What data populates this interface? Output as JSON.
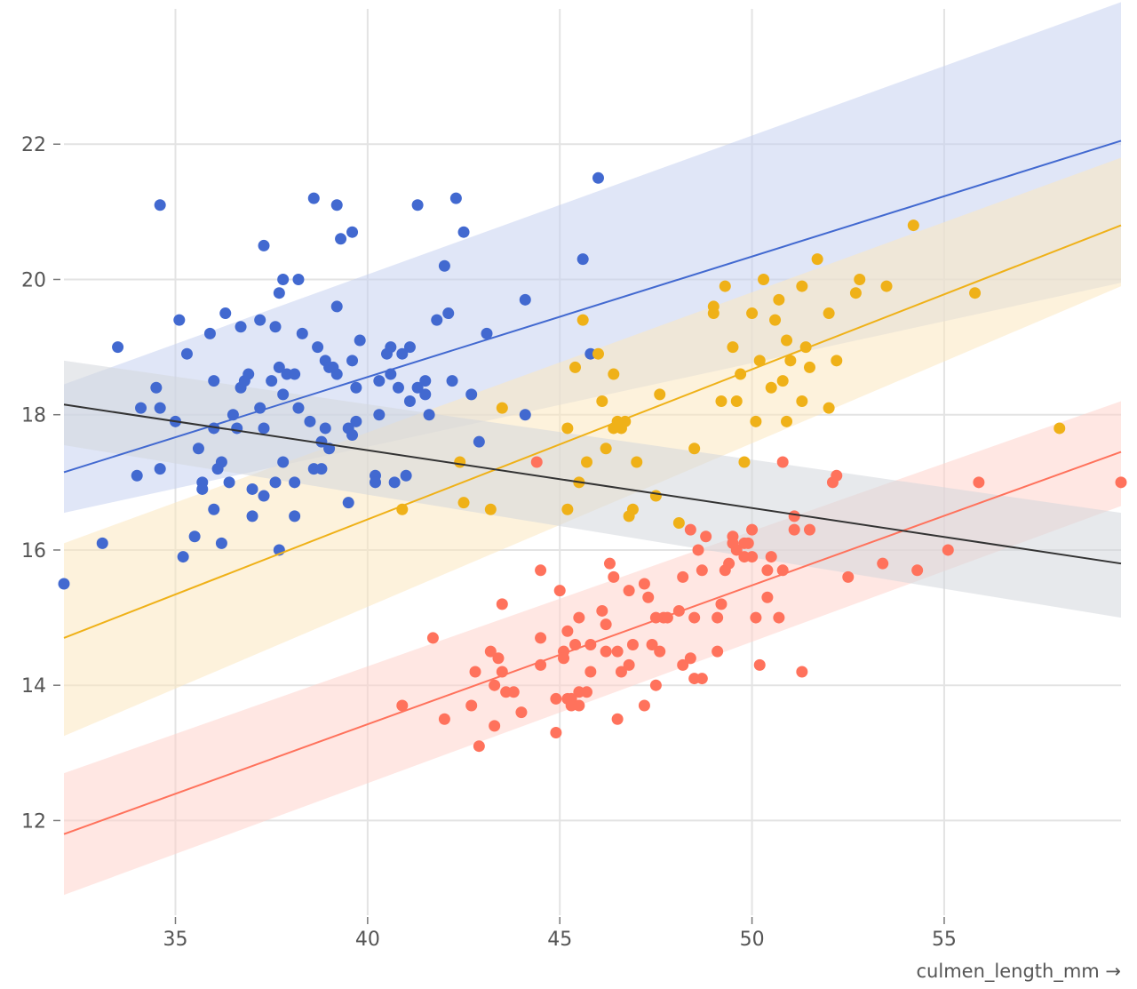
{
  "chart_data": {
    "type": "scatter",
    "title": "",
    "xlabel": "culmen_length_mm →",
    "ylabel": "",
    "xlim": [
      32.1,
      59.6
    ],
    "ylim": [
      10.6,
      24.0
    ],
    "x_ticks": [
      35,
      40,
      45,
      50,
      55
    ],
    "y_ticks": [
      12,
      14,
      16,
      18,
      20,
      22
    ],
    "grid": true,
    "legend": "none",
    "series": [
      {
        "color": "#4269d0",
        "band_color": "#c6d1f0",
        "regression": {
          "x": [
            32.1,
            59.6
          ],
          "y": [
            17.15,
            22.05
          ],
          "band_upper": [
            18.45,
            24.1
          ],
          "band_lower": [
            16.55,
            19.95
          ]
        },
        "points": [
          [
            32.1,
            15.5
          ],
          [
            33.1,
            16.1
          ],
          [
            33.5,
            19.0
          ],
          [
            34.0,
            17.1
          ],
          [
            34.1,
            18.1
          ],
          [
            34.5,
            18.4
          ],
          [
            34.6,
            18.1
          ],
          [
            34.6,
            21.1
          ],
          [
            34.6,
            17.2
          ],
          [
            35.0,
            17.9
          ],
          [
            35.1,
            19.4
          ],
          [
            35.2,
            15.9
          ],
          [
            35.3,
            18.9
          ],
          [
            35.5,
            16.2
          ],
          [
            35.6,
            17.5
          ],
          [
            35.7,
            17.0
          ],
          [
            35.7,
            16.9
          ],
          [
            35.9,
            19.2
          ],
          [
            36.0,
            18.5
          ],
          [
            36.0,
            17.8
          ],
          [
            36.0,
            16.6
          ],
          [
            36.1,
            17.2
          ],
          [
            36.2,
            17.3
          ],
          [
            36.2,
            16.1
          ],
          [
            36.3,
            19.5
          ],
          [
            36.4,
            17.0
          ],
          [
            36.5,
            18.0
          ],
          [
            36.6,
            17.8
          ],
          [
            36.7,
            18.4
          ],
          [
            36.7,
            19.3
          ],
          [
            36.8,
            18.5
          ],
          [
            36.9,
            18.6
          ],
          [
            37.0,
            16.9
          ],
          [
            37.0,
            16.5
          ],
          [
            37.2,
            18.1
          ],
          [
            37.2,
            19.4
          ],
          [
            37.3,
            17.8
          ],
          [
            37.3,
            16.8
          ],
          [
            37.3,
            20.5
          ],
          [
            37.5,
            18.5
          ],
          [
            37.6,
            19.3
          ],
          [
            37.6,
            17.0
          ],
          [
            37.7,
            18.7
          ],
          [
            37.7,
            16.0
          ],
          [
            37.7,
            19.8
          ],
          [
            37.8,
            18.3
          ],
          [
            37.8,
            17.3
          ],
          [
            37.8,
            20.0
          ],
          [
            37.9,
            18.6
          ],
          [
            38.1,
            18.6
          ],
          [
            38.1,
            17.0
          ],
          [
            38.1,
            16.5
          ],
          [
            38.2,
            18.1
          ],
          [
            38.2,
            20.0
          ],
          [
            38.3,
            19.2
          ],
          [
            38.5,
            17.9
          ],
          [
            38.6,
            21.2
          ],
          [
            38.6,
            17.2
          ],
          [
            38.7,
            19.0
          ],
          [
            38.8,
            17.2
          ],
          [
            38.8,
            17.6
          ],
          [
            38.9,
            18.8
          ],
          [
            38.9,
            17.8
          ],
          [
            39.0,
            17.5
          ],
          [
            39.0,
            18.7
          ],
          [
            39.1,
            18.7
          ],
          [
            39.2,
            19.6
          ],
          [
            39.2,
            18.6
          ],
          [
            39.2,
            21.1
          ],
          [
            39.3,
            20.6
          ],
          [
            39.5,
            17.8
          ],
          [
            39.5,
            16.7
          ],
          [
            39.6,
            18.8
          ],
          [
            39.6,
            20.7
          ],
          [
            39.6,
            17.7
          ],
          [
            39.7,
            18.4
          ],
          [
            39.7,
            17.9
          ],
          [
            39.8,
            19.1
          ],
          [
            40.2,
            17.1
          ],
          [
            40.2,
            17.0
          ],
          [
            40.3,
            18.0
          ],
          [
            40.3,
            18.5
          ],
          [
            40.5,
            18.9
          ],
          [
            40.6,
            19.0
          ],
          [
            40.6,
            18.6
          ],
          [
            40.7,
            17.0
          ],
          [
            40.8,
            18.4
          ],
          [
            40.9,
            18.9
          ],
          [
            41.0,
            17.1
          ],
          [
            41.1,
            18.2
          ],
          [
            41.1,
            19.0
          ],
          [
            41.3,
            18.4
          ],
          [
            41.3,
            21.1
          ],
          [
            41.5,
            18.5
          ],
          [
            41.5,
            18.3
          ],
          [
            41.6,
            18.0
          ],
          [
            41.8,
            19.4
          ],
          [
            42.0,
            20.2
          ],
          [
            42.1,
            19.5
          ],
          [
            42.2,
            18.5
          ],
          [
            42.3,
            21.2
          ],
          [
            42.5,
            20.7
          ],
          [
            42.7,
            18.3
          ],
          [
            42.9,
            17.6
          ],
          [
            43.1,
            19.2
          ],
          [
            44.1,
            19.7
          ],
          [
            44.1,
            18.0
          ],
          [
            45.6,
            20.3
          ],
          [
            45.8,
            18.9
          ],
          [
            46.0,
            21.5
          ]
        ]
      },
      {
        "color": "#efb118",
        "band_color": "#fbe8bf",
        "regression": {
          "x": [
            32.1,
            59.6
          ],
          "y": [
            14.7,
            20.8
          ],
          "band_upper": [
            16.1,
            21.8
          ],
          "band_lower": [
            13.25,
            19.9
          ]
        },
        "points": [
          [
            40.9,
            16.6
          ],
          [
            42.4,
            17.3
          ],
          [
            42.5,
            16.7
          ],
          [
            43.2,
            16.6
          ],
          [
            43.5,
            18.1
          ],
          [
            45.2,
            16.6
          ],
          [
            45.2,
            17.8
          ],
          [
            45.4,
            18.7
          ],
          [
            45.5,
            17.0
          ],
          [
            45.6,
            19.4
          ],
          [
            45.7,
            17.3
          ],
          [
            46.0,
            18.9
          ],
          [
            46.1,
            18.2
          ],
          [
            46.2,
            17.5
          ],
          [
            46.4,
            17.8
          ],
          [
            46.4,
            18.6
          ],
          [
            46.5,
            17.9
          ],
          [
            46.6,
            17.8
          ],
          [
            46.7,
            17.9
          ],
          [
            46.8,
            16.5
          ],
          [
            46.9,
            16.6
          ],
          [
            47.0,
            17.3
          ],
          [
            47.5,
            16.8
          ],
          [
            47.6,
            18.3
          ],
          [
            48.1,
            16.4
          ],
          [
            48.5,
            17.5
          ],
          [
            49.0,
            19.5
          ],
          [
            49.0,
            19.6
          ],
          [
            49.2,
            18.2
          ],
          [
            49.3,
            19.9
          ],
          [
            49.5,
            19.0
          ],
          [
            49.6,
            18.2
          ],
          [
            49.7,
            18.6
          ],
          [
            49.8,
            17.3
          ],
          [
            50.0,
            19.5
          ],
          [
            50.1,
            17.9
          ],
          [
            50.2,
            18.8
          ],
          [
            50.3,
            20.0
          ],
          [
            50.5,
            18.4
          ],
          [
            50.6,
            19.4
          ],
          [
            50.7,
            19.7
          ],
          [
            50.8,
            18.5
          ],
          [
            50.9,
            19.1
          ],
          [
            50.9,
            17.9
          ],
          [
            51.0,
            18.8
          ],
          [
            51.3,
            19.9
          ],
          [
            51.3,
            18.2
          ],
          [
            51.4,
            19.0
          ],
          [
            51.5,
            18.7
          ],
          [
            51.7,
            20.3
          ],
          [
            52.0,
            18.1
          ],
          [
            52.0,
            19.5
          ],
          [
            52.2,
            18.8
          ],
          [
            52.7,
            19.8
          ],
          [
            52.8,
            20.0
          ],
          [
            53.5,
            19.9
          ],
          [
            54.2,
            20.8
          ],
          [
            55.8,
            19.8
          ],
          [
            58.0,
            17.8
          ]
        ]
      },
      {
        "color": "#ff725c",
        "band_color": "#ffd3cc",
        "regression": {
          "x": [
            32.1,
            59.6
          ],
          "y": [
            11.8,
            17.45
          ],
          "band_upper": [
            12.7,
            18.2
          ],
          "band_lower": [
            10.9,
            16.65
          ]
        },
        "points": [
          [
            40.9,
            13.7
          ],
          [
            41.7,
            14.7
          ],
          [
            42.0,
            13.5
          ],
          [
            42.7,
            13.7
          ],
          [
            42.8,
            14.2
          ],
          [
            42.9,
            13.1
          ],
          [
            43.2,
            14.5
          ],
          [
            43.3,
            13.4
          ],
          [
            43.3,
            14.0
          ],
          [
            43.4,
            14.4
          ],
          [
            43.5,
            14.2
          ],
          [
            43.5,
            15.2
          ],
          [
            43.6,
            13.9
          ],
          [
            43.8,
            13.9
          ],
          [
            44.0,
            13.6
          ],
          [
            44.4,
            17.3
          ],
          [
            44.5,
            14.3
          ],
          [
            44.5,
            15.7
          ],
          [
            44.5,
            14.7
          ],
          [
            44.9,
            13.3
          ],
          [
            44.9,
            13.8
          ],
          [
            45.0,
            15.4
          ],
          [
            45.1,
            14.5
          ],
          [
            45.1,
            14.4
          ],
          [
            45.2,
            13.8
          ],
          [
            45.2,
            14.8
          ],
          [
            45.3,
            13.7
          ],
          [
            45.3,
            13.8
          ],
          [
            45.4,
            14.6
          ],
          [
            45.5,
            13.7
          ],
          [
            45.5,
            15.0
          ],
          [
            45.5,
            13.9
          ],
          [
            45.7,
            13.9
          ],
          [
            45.8,
            14.6
          ],
          [
            45.8,
            14.2
          ],
          [
            46.1,
            15.1
          ],
          [
            46.2,
            14.5
          ],
          [
            46.2,
            14.9
          ],
          [
            46.3,
            15.8
          ],
          [
            46.4,
            15.6
          ],
          [
            46.5,
            13.5
          ],
          [
            46.5,
            14.5
          ],
          [
            46.6,
            14.2
          ],
          [
            46.8,
            15.4
          ],
          [
            46.8,
            14.3
          ],
          [
            46.9,
            14.6
          ],
          [
            47.2,
            13.7
          ],
          [
            47.2,
            15.5
          ],
          [
            47.3,
            15.3
          ],
          [
            47.4,
            14.6
          ],
          [
            47.5,
            14.0
          ],
          [
            47.5,
            15.0
          ],
          [
            47.6,
            14.5
          ],
          [
            47.7,
            15.0
          ],
          [
            47.8,
            15.0
          ],
          [
            48.1,
            15.1
          ],
          [
            48.2,
            14.3
          ],
          [
            48.2,
            15.6
          ],
          [
            48.4,
            14.4
          ],
          [
            48.4,
            16.3
          ],
          [
            48.5,
            15.0
          ],
          [
            48.5,
            14.1
          ],
          [
            48.6,
            16.0
          ],
          [
            48.7,
            14.1
          ],
          [
            48.7,
            15.7
          ],
          [
            48.8,
            16.2
          ],
          [
            49.1,
            14.5
          ],
          [
            49.1,
            15.0
          ],
          [
            49.2,
            15.2
          ],
          [
            49.3,
            15.7
          ],
          [
            49.4,
            15.8
          ],
          [
            49.5,
            16.2
          ],
          [
            49.5,
            16.1
          ],
          [
            49.6,
            16.0
          ],
          [
            49.8,
            16.1
          ],
          [
            49.8,
            15.9
          ],
          [
            49.9,
            16.1
          ],
          [
            50.0,
            15.9
          ],
          [
            50.0,
            16.3
          ],
          [
            50.1,
            15.0
          ],
          [
            50.2,
            14.3
          ],
          [
            50.4,
            15.3
          ],
          [
            50.4,
            15.7
          ],
          [
            50.5,
            15.9
          ],
          [
            50.7,
            15.0
          ],
          [
            50.8,
            17.3
          ],
          [
            50.8,
            15.7
          ],
          [
            51.1,
            16.3
          ],
          [
            51.1,
            16.5
          ],
          [
            51.3,
            14.2
          ],
          [
            51.5,
            16.3
          ],
          [
            52.1,
            17.0
          ],
          [
            52.2,
            17.1
          ],
          [
            52.5,
            15.6
          ],
          [
            53.4,
            15.8
          ],
          [
            54.3,
            15.7
          ],
          [
            55.1,
            16.0
          ],
          [
            55.9,
            17.0
          ],
          [
            59.6,
            17.0
          ]
        ]
      }
    ],
    "overall_regression": {
      "color": "#333333",
      "band_color": "#d3d7dc",
      "x": [
        32.1,
        59.6
      ],
      "y": [
        18.15,
        15.8
      ],
      "band_upper": [
        18.8,
        16.55
      ],
      "band_lower": [
        17.55,
        15.0
      ]
    }
  }
}
